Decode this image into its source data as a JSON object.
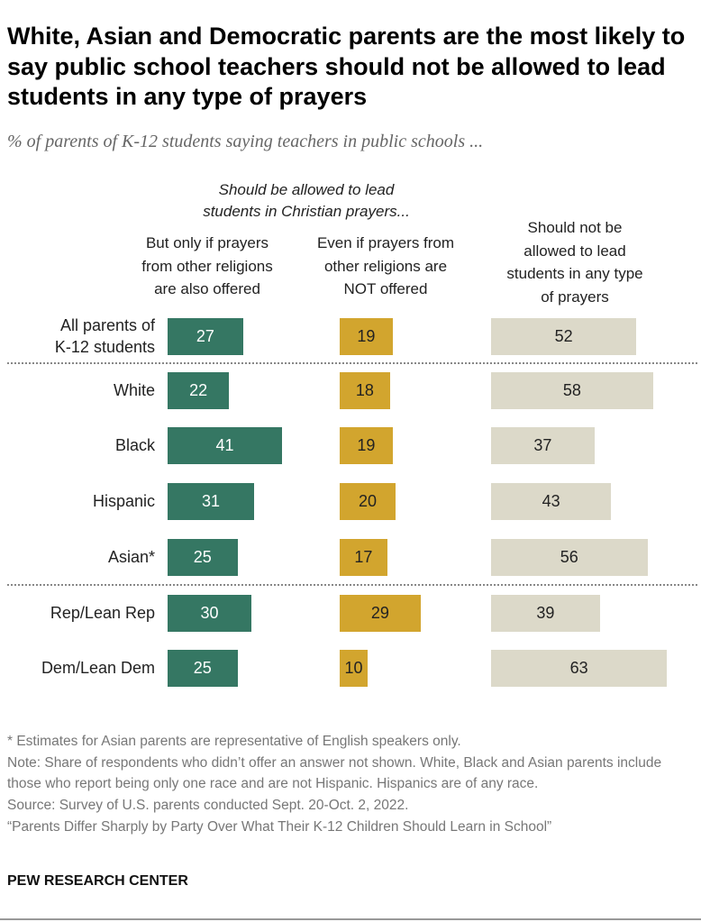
{
  "chart_data": {
    "type": "bar",
    "title": "White, Asian and Democratic parents are the most likely to say public school teachers should not be allowed to lead students in any type of prayers",
    "subtitle": "% of parents of K-12 students saying teachers in public schools ...",
    "group_header": [
      "Should be allowed to lead",
      "students in Christian prayers..."
    ],
    "column_headers": [
      [
        "But only if prayers",
        "from other religions",
        "are also offered"
      ],
      [
        "Even if prayers from",
        "other religions are",
        "NOT offered"
      ],
      [
        "Should not be",
        "allowed to lead",
        "students in any type",
        "of prayers"
      ]
    ],
    "categories": [
      [
        "All parents of",
        "K-12 students"
      ],
      [
        "White"
      ],
      [
        "Black"
      ],
      [
        "Hispanic"
      ],
      [
        "Asian*"
      ],
      [
        "Rep/Lean Rep"
      ],
      [
        "Dem/Lean Dem"
      ]
    ],
    "series": [
      {
        "values": [
          27,
          22,
          41,
          31,
          25,
          30,
          25
        ],
        "color": "#357763",
        "label_color": "#ffffff"
      },
      {
        "values": [
          19,
          18,
          19,
          20,
          17,
          29,
          10
        ],
        "color": "#d2a52e",
        "label_color": "#222222"
      },
      {
        "values": [
          52,
          58,
          37,
          43,
          56,
          39,
          63
        ],
        "color": "#dcd9c9",
        "label_color": "#222222"
      }
    ],
    "separators_after": [
      0,
      4
    ]
  },
  "notes": [
    "* Estimates for Asian parents are representative of English speakers only.",
    "Note: Share of respondents who didn’t offer an answer not shown. White, Black and Asian parents include those who report being only one race and are not Hispanic. Hispanics are of any race.",
    "Source: Survey of U.S. parents conducted Sept. 20-Oct. 2, 2022.",
    "“Parents Differ Sharply by Party Over What Their K-12 Children Should Learn in School”"
  ],
  "brand": "PEW RESEARCH CENTER"
}
